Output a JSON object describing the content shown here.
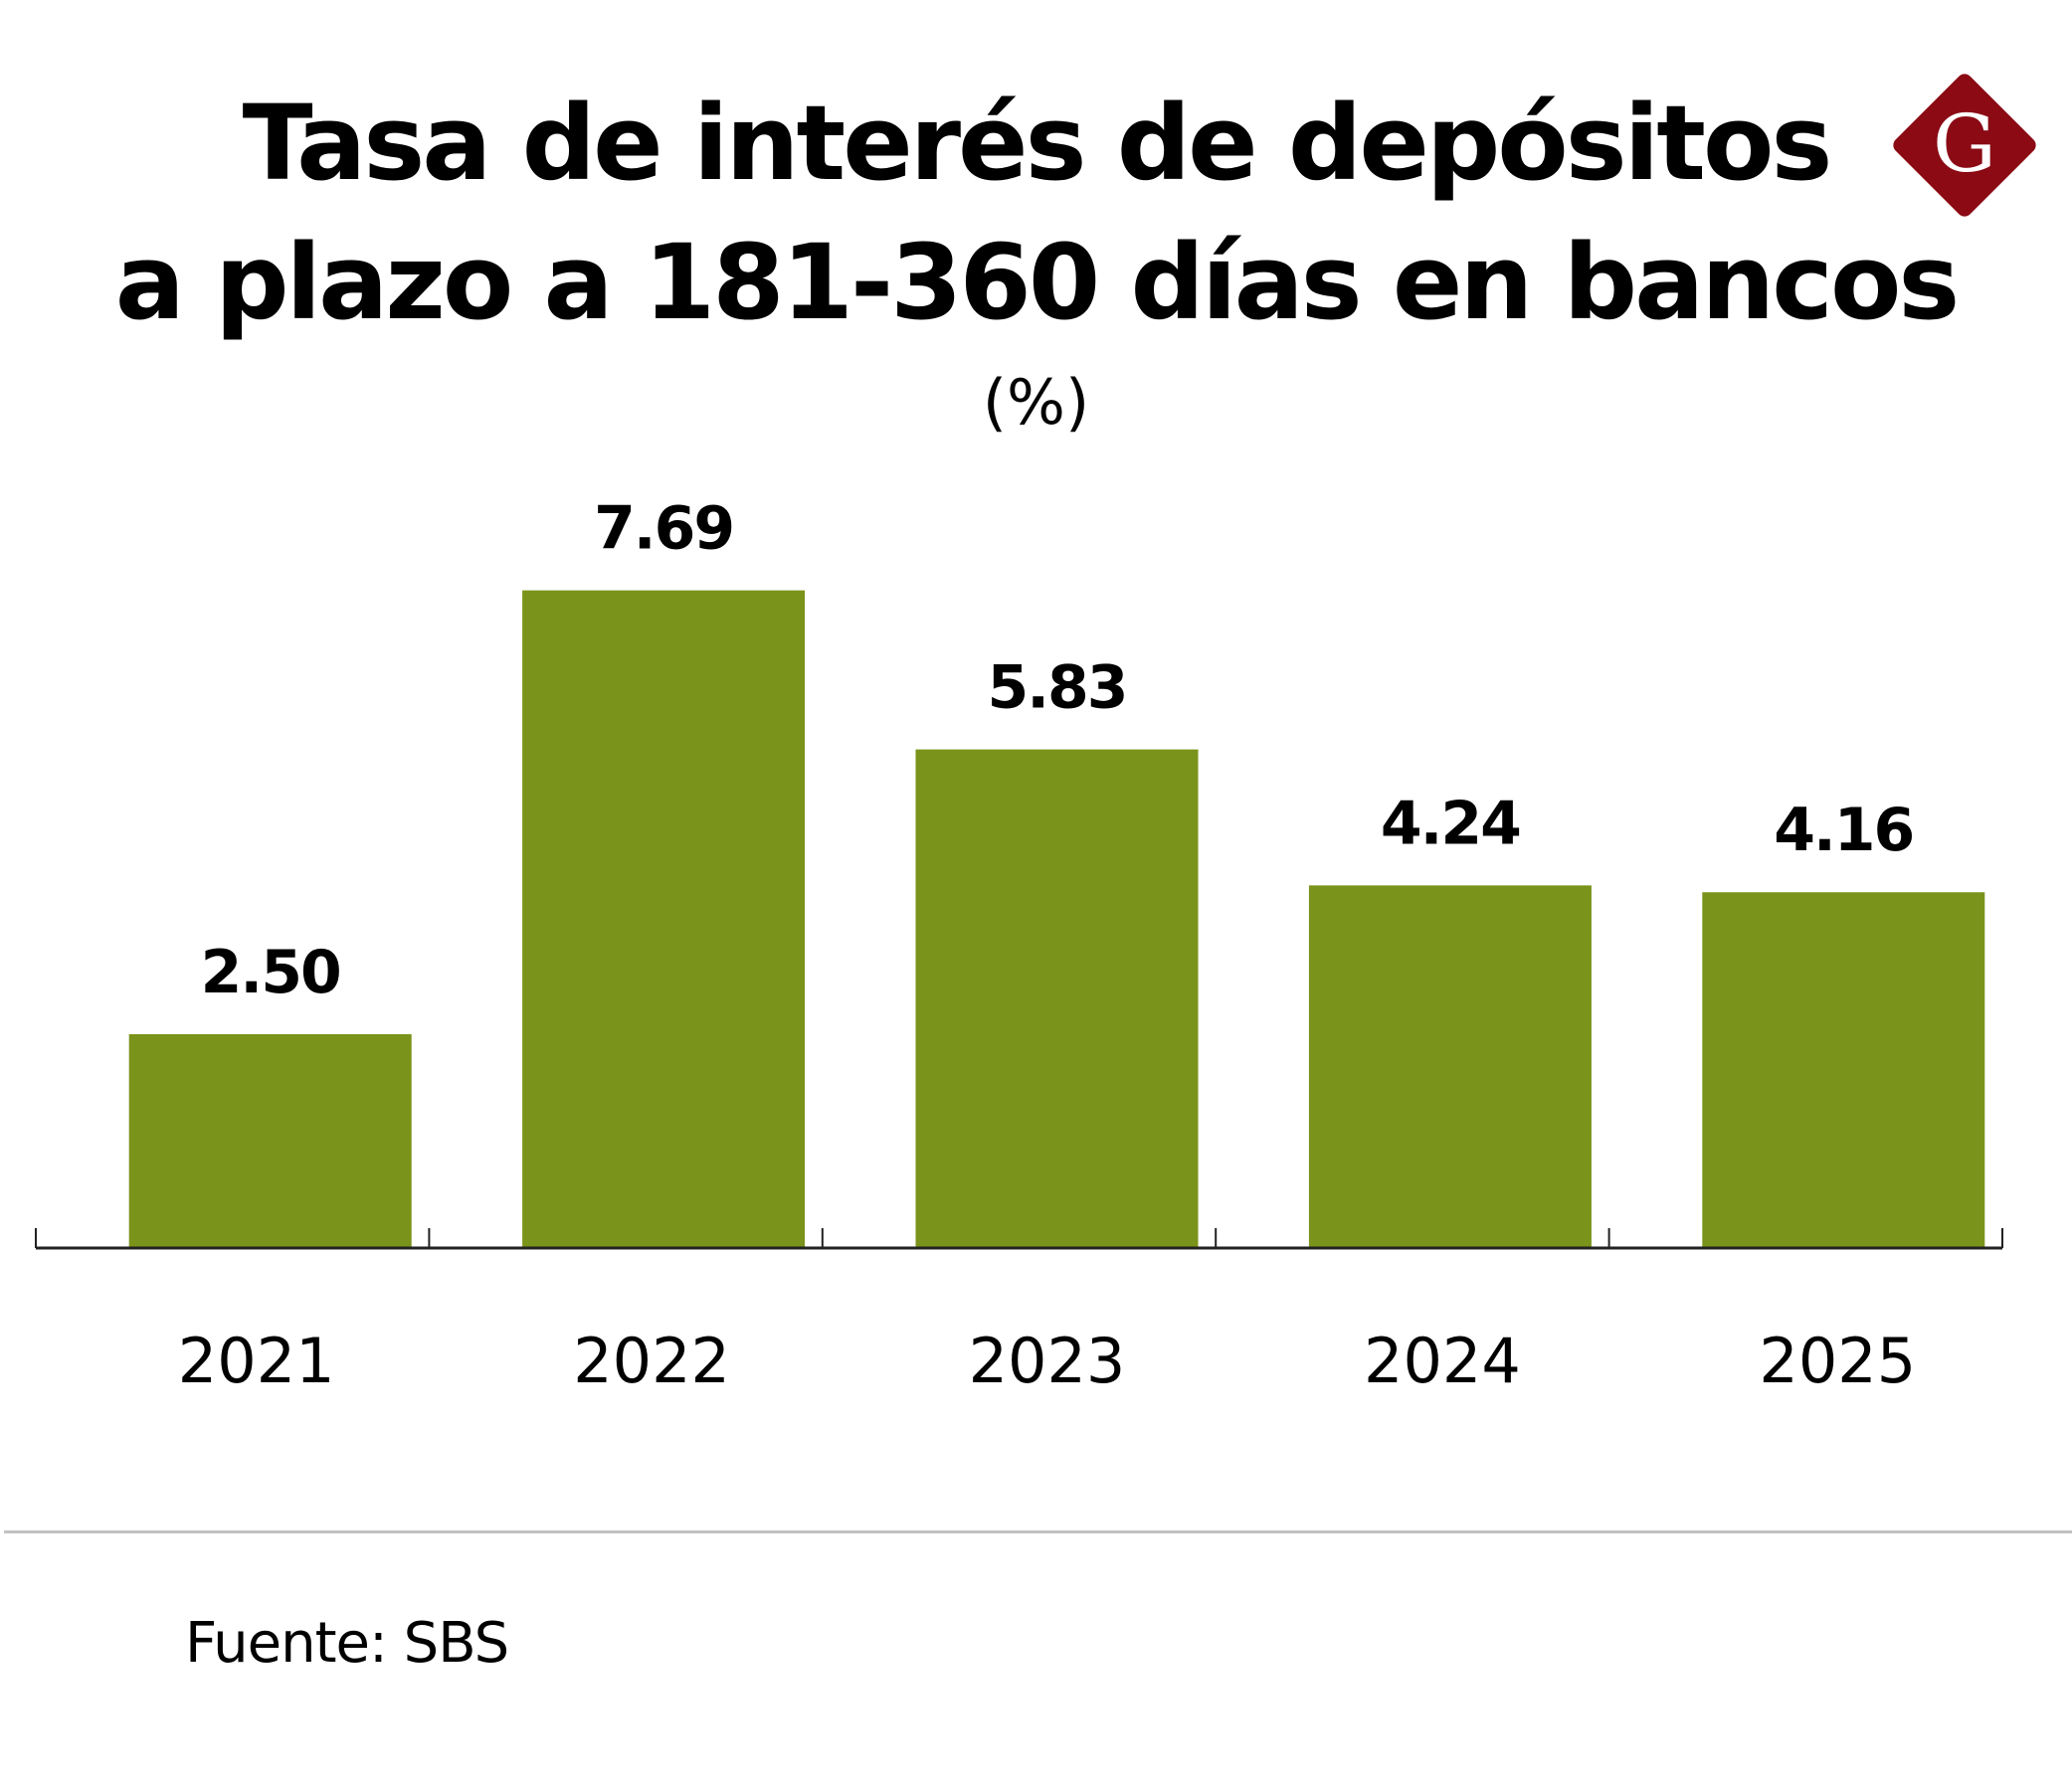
{
  "header": {
    "title_line1": "Tasa de interés de depósitos",
    "title_line2": "a plazo a 181-360 días en bancos",
    "unit": "(%)"
  },
  "logo": {
    "letter": "G",
    "color": "#8b0a14"
  },
  "footer": {
    "source": "Fuente: SBS"
  },
  "chart_data": {
    "type": "bar",
    "title": "Tasa de interés de depósitos a plazo a 181-360 días en bancos",
    "subtitle": "(%)",
    "categories": [
      "2021",
      "2022",
      "2023",
      "2024",
      "2025"
    ],
    "values": [
      2.5,
      7.69,
      5.83,
      4.24,
      4.16
    ],
    "labels": [
      "2.50",
      "7.69",
      "5.83",
      "4.24",
      "4.16"
    ],
    "bar_color": "#7a931a",
    "ylim": [
      0,
      7.69
    ],
    "grid": false,
    "y_axis_visible": false,
    "data_labels": true
  }
}
